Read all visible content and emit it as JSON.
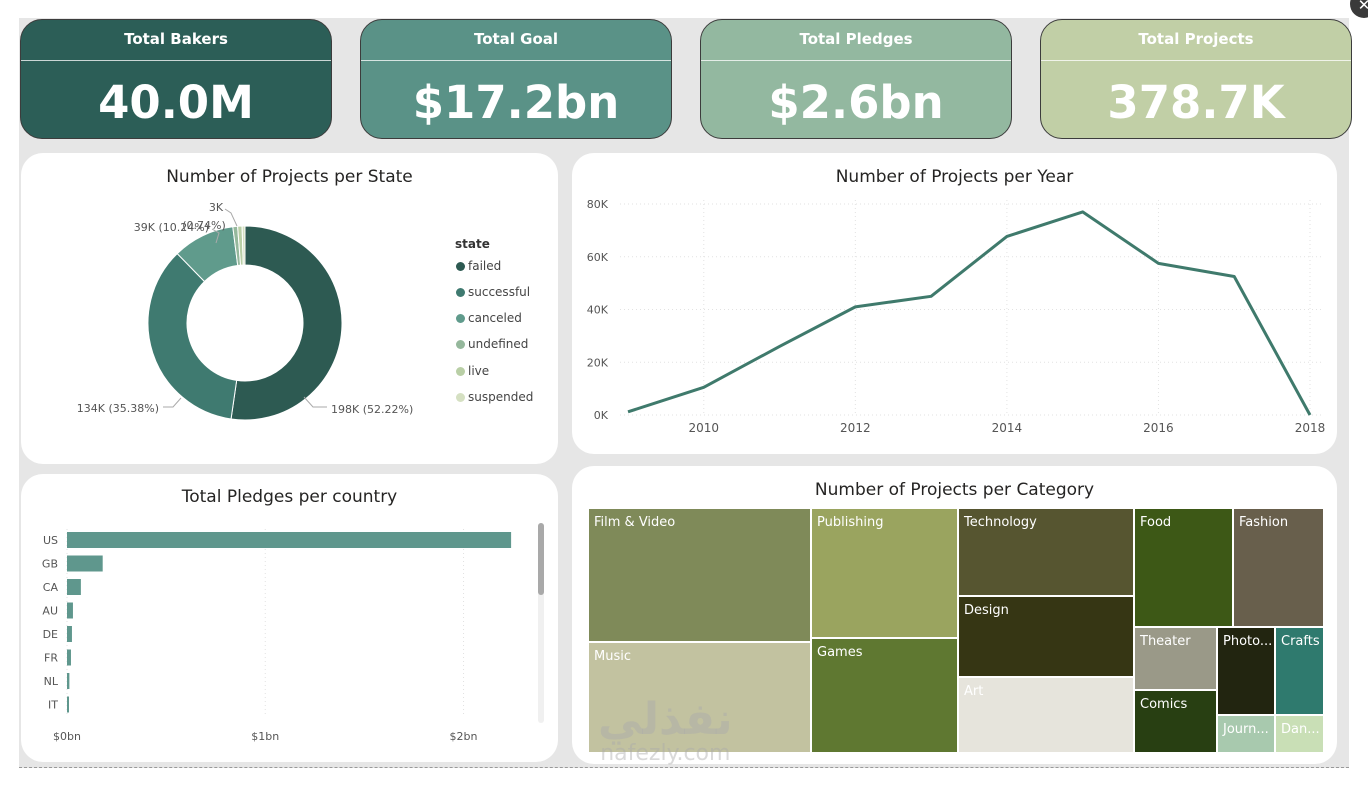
{
  "kpis": [
    {
      "title": "Total Bakers",
      "value": "40.0M",
      "color": "#2c5e57"
    },
    {
      "title": "Total Goal",
      "value": "$17.2bn",
      "color": "#5a9287"
    },
    {
      "title": "Total Pledges",
      "value": "$2.6bn",
      "color": "#93b8a0"
    },
    {
      "title": "Total Projects",
      "value": "378.7K",
      "color": "#c1cfa6"
    }
  ],
  "state_card": {
    "title": "Number of Projects per State",
    "legend_title": "state",
    "legend": [
      {
        "label": "failed",
        "color": "#2d5a52"
      },
      {
        "label": "successful",
        "color": "#3f7a70"
      },
      {
        "label": "canceled",
        "color": "#609b8c"
      },
      {
        "label": "undefined",
        "color": "#95b89c"
      },
      {
        "label": "live",
        "color": "#b9cfa6"
      },
      {
        "label": "suspended",
        "color": "#d5e0c2"
      }
    ],
    "data_labels": [
      "198K (52.22%)",
      "134K (35.38%)",
      "39K (10.24%)",
      "3K",
      "(0.74%)"
    ]
  },
  "year_card": {
    "title": "Number of Projects per Year",
    "y_ticks": [
      "80K",
      "60K",
      "40K",
      "20K",
      "0K"
    ],
    "x_ticks": [
      "2010",
      "2012",
      "2014",
      "2016",
      "2018"
    ]
  },
  "country_card": {
    "title": "Total Pledges per country",
    "x_ticks": [
      "$0bn",
      "$1bn",
      "$2bn"
    ]
  },
  "category_card": {
    "title": "Number of Projects per Category",
    "cells": [
      {
        "label": "Film & Video",
        "color": "#7f8a59",
        "text_color": "#ffffff"
      },
      {
        "label": "Music",
        "color": "#c2c2a0",
        "text_color": "#ffffff"
      },
      {
        "label": "Publishing",
        "color": "#9aa45f",
        "text_color": "#ffffff"
      },
      {
        "label": "Games",
        "color": "#5f7831",
        "text_color": "#ffffff"
      },
      {
        "label": "Technology",
        "color": "#565530",
        "text_color": "#ffffff"
      },
      {
        "label": "Design",
        "color": "#363614",
        "text_color": "#ffffff"
      },
      {
        "label": "Art",
        "color": "#e6e4dc",
        "text_color": "#ffffff"
      },
      {
        "label": "Food",
        "color": "#3d5816",
        "text_color": "#ffffff"
      },
      {
        "label": "Fashion",
        "color": "#685f4c",
        "text_color": "#ffffff"
      },
      {
        "label": "Theater",
        "color": "#9a9988",
        "text_color": "#ffffff"
      },
      {
        "label": "Photo...",
        "color": "#222510",
        "text_color": "#ffffff"
      },
      {
        "label": "Crafts",
        "color": "#2f7a6e",
        "text_color": "#ffffff"
      },
      {
        "label": "Comics",
        "color": "#283f12",
        "text_color": "#ffffff"
      },
      {
        "label": "Journ...",
        "color": "#a8c9ae",
        "text_color": "#ffffff"
      },
      {
        "label": "Dan...",
        "color": "#c9dfb6",
        "text_color": "#ffffff"
      }
    ]
  },
  "watermark": {
    "arabic": "نفذلي",
    "latin": "nafezly.com"
  },
  "chart_data": [
    {
      "type": "pie",
      "title": "Number of Projects per State",
      "legend_title": "state",
      "categories": [
        "failed",
        "successful",
        "canceled",
        "undefined",
        "live",
        "suspended"
      ],
      "values": [
        198000,
        134000,
        39000,
        3000,
        2800,
        1800
      ],
      "percent": [
        52.22,
        35.38,
        10.24,
        0.74,
        0.74,
        0.48
      ],
      "legend_position": "right",
      "donut": true
    },
    {
      "type": "line",
      "title": "Number of Projects per Year",
      "x": [
        2009,
        2010,
        2011,
        2012,
        2013,
        2014,
        2015,
        2016,
        2017,
        2018
      ],
      "series": [
        {
          "values": [
            1200,
            10500,
            26000,
            41000,
            45000,
            67700,
            77000,
            57500,
            52500,
            0
          ]
        }
      ],
      "ylim": [
        0,
        80000
      ],
      "xlim": [
        2009,
        2018
      ],
      "grid": true,
      "color": "#3f7a6c"
    },
    {
      "type": "bar",
      "orientation": "horizontal",
      "title": "Total Pledges per country",
      "categories": [
        "US",
        "GB",
        "CA",
        "AU",
        "DE",
        "FR",
        "NL",
        "IT"
      ],
      "values": [
        2.24,
        0.18,
        0.07,
        0.03,
        0.025,
        0.02,
        0.012,
        0.01
      ],
      "xlim": [
        0,
        2.3
      ],
      "unit": "$bn",
      "grid": true,
      "color": "#5f978d"
    },
    {
      "type": "treemap",
      "title": "Number of Projects per Category",
      "categories": [
        "Film & Video",
        "Music",
        "Publishing",
        "Games",
        "Technology",
        "Design",
        "Art",
        "Food",
        "Fashion",
        "Theater",
        "Photo...",
        "Crafts",
        "Comics",
        "Journ...",
        "Dan..."
      ],
      "values": [
        63600,
        51900,
        39900,
        35200,
        32600,
        30100,
        28100,
        24600,
        22800,
        10900,
        10800,
        8800,
        10800,
        4700,
        3800
      ]
    }
  ]
}
